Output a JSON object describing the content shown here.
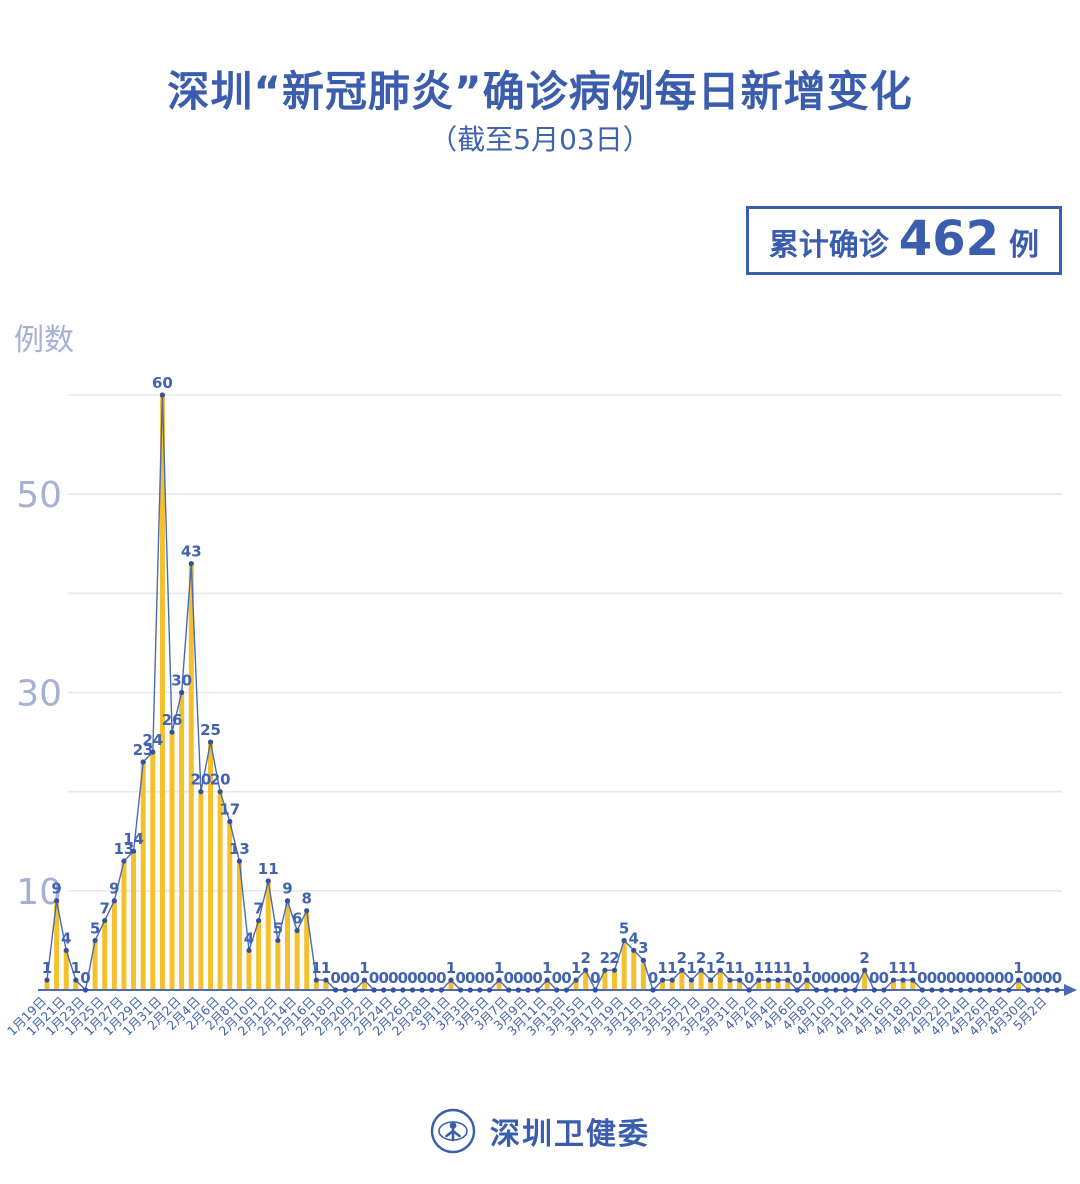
{
  "title": "深圳“新冠肺炎”确诊病例每日新增变化",
  "subtitle": "（截至5月03日）",
  "badge": {
    "label": "累计确诊",
    "value": "462",
    "unit": "例"
  },
  "footer": {
    "org": "深圳卫健委"
  },
  "colors": {
    "brand_blue": "#3b5dad",
    "axis_blue": "#4b69b5",
    "value_label_blue": "#4263b0",
    "bar_yellow": "#f4c12d",
    "grid_gray": "#e7e9f0",
    "ytick_periwinkle": "#a6b0d6",
    "dot_blue": "#34519f",
    "background": "#ffffff"
  },
  "chart_data": {
    "type": "bar",
    "title": "深圳“新冠肺炎”确诊病例每日新增变化",
    "subtitle": "（截至5月03日）",
    "xlabel": "",
    "ylabel": "例数",
    "ylim": [
      0,
      62
    ],
    "grid": true,
    "gridlines": [
      10,
      20,
      30,
      40,
      50,
      60
    ],
    "y_ticks_labeled": [
      10,
      30,
      50
    ],
    "x_tick_step": 2,
    "cumulative_total": 462,
    "x": [
      "1月19日",
      "1月20日",
      "1月21日",
      "1月22日",
      "1月23日",
      "1月24日",
      "1月25日",
      "1月26日",
      "1月27日",
      "1月28日",
      "1月29日",
      "1月30日",
      "1月31日",
      "2月1日",
      "2月2日",
      "2月3日",
      "2月4日",
      "2月5日",
      "2月6日",
      "2月7日",
      "2月8日",
      "2月9日",
      "2月10日",
      "2月11日",
      "2月12日",
      "2月13日",
      "2月14日",
      "2月15日",
      "2月16日",
      "2月17日",
      "2月18日",
      "2月19日",
      "2月20日",
      "2月21日",
      "2月22日",
      "2月23日",
      "2月24日",
      "2月25日",
      "2月26日",
      "2月27日",
      "2月28日",
      "2月29日",
      "3月1日",
      "3月2日",
      "3月3日",
      "3月4日",
      "3月5日",
      "3月6日",
      "3月7日",
      "3月8日",
      "3月9日",
      "3月10日",
      "3月11日",
      "3月12日",
      "3月13日",
      "3月14日",
      "3月15日",
      "3月16日",
      "3月17日",
      "3月18日",
      "3月19日",
      "3月20日",
      "3月21日",
      "3月22日",
      "3月23日",
      "3月24日",
      "3月25日",
      "3月26日",
      "3月27日",
      "3月28日",
      "3月29日",
      "3月30日",
      "3月31日",
      "4月1日",
      "4月2日",
      "4月3日",
      "4月4日",
      "4月5日",
      "4月6日",
      "4月7日",
      "4月8日",
      "4月9日",
      "4月10日",
      "4月11日",
      "4月12日",
      "4月13日",
      "4月14日",
      "4月15日",
      "4月16日",
      "4月17日",
      "4月18日",
      "4月19日",
      "4月20日",
      "4月21日",
      "4月22日",
      "4月23日",
      "4月24日",
      "4月25日",
      "4月26日",
      "4月27日",
      "4月28日",
      "4月29日",
      "4月30日",
      "5月1日",
      "5月2日",
      "5月3日"
    ],
    "values": [
      1,
      9,
      4,
      1,
      0,
      5,
      7,
      9,
      13,
      14,
      23,
      24,
      60,
      26,
      30,
      43,
      20,
      25,
      20,
      17,
      13,
      4,
      7,
      11,
      5,
      9,
      6,
      8,
      1,
      1,
      0,
      0,
      0,
      1,
      0,
      0,
      0,
      0,
      0,
      0,
      0,
      0,
      1,
      0,
      0,
      0,
      0,
      1,
      0,
      0,
      0,
      0,
      1,
      0,
      0,
      1,
      2,
      0,
      2,
      2,
      5,
      4,
      3,
      0,
      1,
      1,
      2,
      1,
      2,
      1,
      2,
      1,
      1,
      0,
      1,
      1,
      1,
      1,
      0,
      1,
      0,
      0,
      0,
      0,
      0,
      2,
      0,
      0,
      1,
      1,
      1,
      0,
      0,
      0,
      0,
      0,
      0,
      0,
      0,
      0,
      0,
      1,
      0,
      0,
      0,
      0
    ]
  }
}
